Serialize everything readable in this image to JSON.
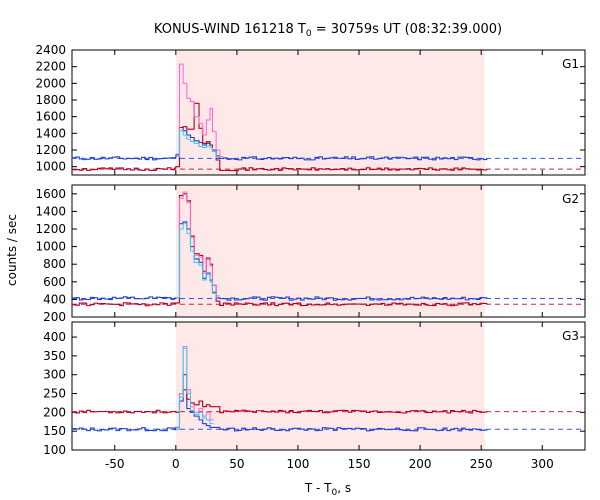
{
  "chart_data": {
    "type": "line",
    "title": "KONUS-WIND 161218 T",
    "title_sub": "0",
    "title_rest": " = 30759s UT (08:32:39.000)",
    "xlabel": "T - T",
    "xlabel_sub": "0",
    "xlabel_rest": ", s",
    "ylabel": "counts / sec",
    "xlim": [
      -85,
      335
    ],
    "xticks": [
      -50,
      0,
      50,
      100,
      150,
      200,
      250,
      300
    ],
    "xtick_labels": [
      "-50",
      "0",
      "50",
      "100",
      "150",
      "200",
      "250",
      "300"
    ],
    "shaded_interval": [
      0,
      253
    ],
    "colors": {
      "shade": "#ffe8e8",
      "blue": "#1f3fcc",
      "red": "#b00020",
      "pink": "#ff66cc",
      "cyan": "#33ccee",
      "blue_dash": "#3355ee",
      "red_dash": "#cc2244"
    },
    "panels": [
      {
        "name": "G1",
        "ylim": [
          900,
          2400
        ],
        "yticks": [
          1000,
          1200,
          1400,
          1600,
          1800,
          2000,
          2200,
          2400
        ],
        "ytick_labels": [
          "1000",
          "1200",
          "1400",
          "1600",
          "1800",
          "2000",
          "2200",
          "2400"
        ],
        "blue_level": 1100,
        "red_level": 970,
        "fine_peak": [
          [
            0,
            1150
          ],
          [
            3,
            2230
          ],
          [
            6,
            2000
          ],
          [
            9,
            1820
          ],
          [
            12,
            1780
          ],
          [
            15,
            1600
          ],
          [
            19,
            1520
          ],
          [
            22,
            1380
          ],
          [
            25,
            1560
          ],
          [
            28,
            1700
          ],
          [
            30,
            1420
          ],
          [
            33,
            1200
          ],
          [
            36,
            1120
          ]
        ],
        "blue_peak": [
          [
            0,
            1140
          ],
          [
            3,
            1470
          ],
          [
            6,
            1430
          ],
          [
            9,
            1380
          ],
          [
            12,
            1350
          ],
          [
            15,
            1310
          ],
          [
            19,
            1290
          ],
          [
            22,
            1260
          ],
          [
            25,
            1280
          ],
          [
            28,
            1260
          ],
          [
            30,
            1200
          ],
          [
            33,
            1130
          ]
        ],
        "red_peak": [
          [
            0,
            1000
          ],
          [
            3,
            1470
          ],
          [
            6,
            1480
          ],
          [
            9,
            1450
          ],
          [
            12,
            1450
          ],
          [
            15,
            1760
          ],
          [
            19,
            1460
          ],
          [
            22,
            1280
          ],
          [
            25,
            1300
          ],
          [
            28,
            1260
          ],
          [
            30,
            1200
          ],
          [
            33,
            1080
          ]
        ],
        "cyan_peak": [
          [
            0,
            1120
          ],
          [
            3,
            1430
          ],
          [
            6,
            1380
          ],
          [
            9,
            1330
          ],
          [
            12,
            1300
          ],
          [
            15,
            1280
          ],
          [
            19,
            1240
          ],
          [
            22,
            1230
          ],
          [
            25,
            1250
          ],
          [
            28,
            1230
          ],
          [
            30,
            1180
          ],
          [
            33,
            1110
          ]
        ]
      },
      {
        "name": "G2",
        "ylim": [
          200,
          1700
        ],
        "yticks": [
          200,
          400,
          600,
          800,
          1000,
          1200,
          1400,
          1600
        ],
        "ytick_labels": [
          "200",
          "400",
          "600",
          "800",
          "1000",
          "1200",
          "1400",
          "1600"
        ],
        "blue_level": 410,
        "red_level": 345,
        "fine_peak": [
          [
            0,
            420
          ],
          [
            3,
            1550
          ],
          [
            6,
            1620
          ],
          [
            9,
            1500
          ],
          [
            12,
            1100
          ],
          [
            15,
            900
          ],
          [
            19,
            880
          ],
          [
            22,
            700
          ],
          [
            25,
            850
          ],
          [
            28,
            780
          ],
          [
            30,
            560
          ],
          [
            33,
            440
          ]
        ],
        "blue_peak": [
          [
            0,
            420
          ],
          [
            3,
            1260
          ],
          [
            6,
            1280
          ],
          [
            9,
            1200
          ],
          [
            12,
            1000
          ],
          [
            15,
            860
          ],
          [
            19,
            820
          ],
          [
            22,
            640
          ],
          [
            25,
            700
          ],
          [
            28,
            620
          ],
          [
            30,
            480
          ],
          [
            33,
            420
          ]
        ],
        "red_peak": [
          [
            0,
            360
          ],
          [
            3,
            1580
          ],
          [
            6,
            1600
          ],
          [
            9,
            1520
          ],
          [
            12,
            1120
          ],
          [
            15,
            920
          ],
          [
            19,
            900
          ],
          [
            22,
            720
          ],
          [
            25,
            870
          ],
          [
            28,
            800
          ],
          [
            30,
            560
          ],
          [
            33,
            380
          ]
        ],
        "cyan_peak": [
          [
            0,
            420
          ],
          [
            3,
            1200
          ],
          [
            6,
            1260
          ],
          [
            9,
            1150
          ],
          [
            12,
            950
          ],
          [
            15,
            820
          ],
          [
            19,
            790
          ],
          [
            22,
            620
          ],
          [
            25,
            680
          ],
          [
            28,
            600
          ],
          [
            30,
            470
          ],
          [
            33,
            415
          ]
        ]
      },
      {
        "name": "G3",
        "ylim": [
          100,
          440
        ],
        "yticks": [
          100,
          150,
          200,
          250,
          300,
          350,
          400
        ],
        "ytick_labels": [
          "100",
          "150",
          "200",
          "250",
          "300",
          "350",
          "400"
        ],
        "blue_level": 155,
        "red_level": 202,
        "fine_peak": [
          [
            0,
            160
          ],
          [
            3,
            250
          ],
          [
            6,
            375
          ],
          [
            9,
            260
          ],
          [
            12,
            215
          ],
          [
            15,
            200
          ],
          [
            19,
            210
          ],
          [
            22,
            190
          ],
          [
            25,
            200
          ],
          [
            28,
            180
          ]
        ],
        "blue_peak": [
          [
            0,
            160
          ],
          [
            3,
            230
          ],
          [
            6,
            300
          ],
          [
            9,
            210
          ],
          [
            12,
            200
          ],
          [
            15,
            190
          ],
          [
            19,
            180
          ],
          [
            22,
            170
          ],
          [
            25,
            165
          ],
          [
            28,
            160
          ]
        ],
        "red_peak": [
          [
            0,
            200
          ],
          [
            3,
            250
          ],
          [
            6,
            260
          ],
          [
            9,
            235
          ],
          [
            12,
            225
          ],
          [
            15,
            220
          ],
          [
            19,
            230
          ],
          [
            22,
            215
          ],
          [
            25,
            220
          ],
          [
            28,
            215
          ]
        ],
        "cyan_peak": [
          [
            0,
            155
          ],
          [
            3,
            240
          ],
          [
            6,
            370
          ],
          [
            9,
            250
          ],
          [
            12,
            205
          ],
          [
            15,
            195
          ],
          [
            19,
            200
          ],
          [
            22,
            185
          ],
          [
            25,
            180
          ],
          [
            28,
            170
          ]
        ]
      }
    ]
  }
}
